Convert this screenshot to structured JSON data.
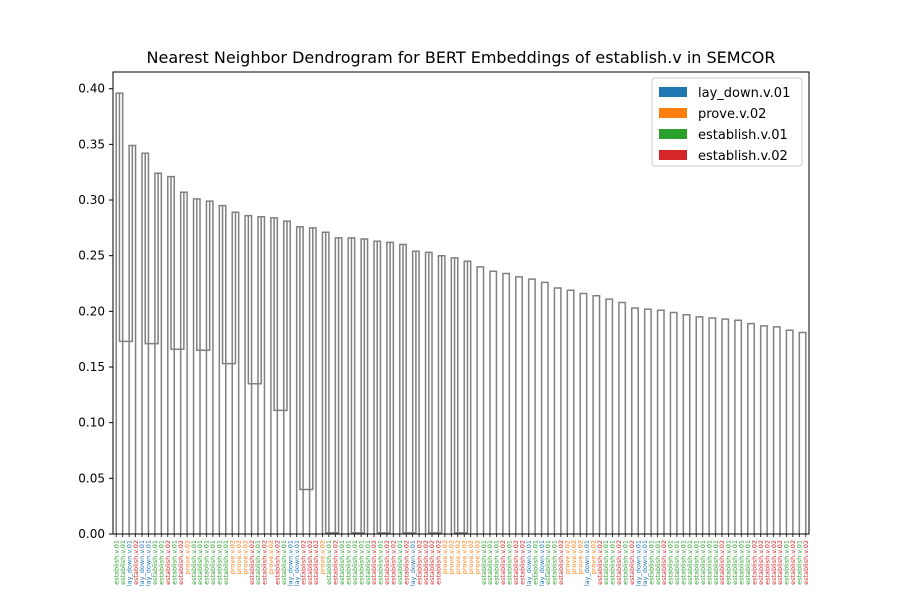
{
  "chart_data": {
    "type": "dendrogram",
    "title": "Nearest Neighbor Dendrogram for BERT Embeddings of establish.v in SEMCOR",
    "xlabel": "",
    "ylabel": "",
    "ylim": [
      0,
      0.415
    ],
    "yticks": [
      "0.00",
      "0.05",
      "0.10",
      "0.15",
      "0.20",
      "0.25",
      "0.30",
      "0.35",
      "0.40"
    ],
    "ytick_values": [
      0,
      0.05,
      0.1,
      0.15,
      0.2,
      0.25,
      0.3,
      0.35,
      0.4
    ],
    "grid": false,
    "legend_position": "top-right",
    "link_color": "#808080",
    "legend": [
      {
        "label": "lay_down.v.01",
        "color": "#1f77b4"
      },
      {
        "label": "prove.v.02",
        "color": "#ff7f0e"
      },
      {
        "label": "establish.v.01",
        "color": "#2ca02c"
      },
      {
        "label": "establish.v.02",
        "color": "#d62728"
      }
    ],
    "leaves": [
      "establish.v.01",
      "establish.v.01",
      "lay_down.v.01",
      "establish.v.02",
      "lay_down.v.01",
      "lay_down.v.01",
      "establish.v.01",
      "establish.v.01",
      "establish.v.02",
      "establish.v.01",
      "establish.v.02",
      "prove.v.02",
      "establish.v.01",
      "establish.v.01",
      "establish.v.01",
      "establish.v.01",
      "establish.v.01",
      "establish.v.01",
      "prove.v.02",
      "prove.v.02",
      "prove.v.02",
      "establish.v.02",
      "establish.v.01",
      "establish.v.02",
      "prove.v.02",
      "establish.v.02",
      "establish.v.01",
      "lay_down.v.01",
      "lay_down.v.01",
      "establish.v.02",
      "establish.v.02",
      "establish.v.02",
      "prove.v.02",
      "establish.v.01",
      "establish.v.02",
      "establish.v.01",
      "establish.v.01",
      "establish.v.01",
      "establish.v.01",
      "establish.v.01",
      "establish.v.02",
      "establish.v.01",
      "establish.v.02",
      "establish.v.02",
      "establish.v.01",
      "establish.v.02",
      "lay_down.v.01",
      "establish.v.02",
      "establish.v.02",
      "establish.v.02",
      "establish.v.02",
      "prove.v.02",
      "prove.v.02",
      "prove.v.02",
      "prove.v.02",
      "prove.v.02",
      "prove.v.02",
      "establish.v.01",
      "establish.v.01",
      "establish.v.01",
      "establish.v.02",
      "establish.v.01",
      "establish.v.02",
      "establish.v.02",
      "lay_down.v.01",
      "establish.v.01",
      "lay_down.v.01",
      "establish.v.01",
      "establish.v.01",
      "establish.v.02",
      "prove.v.02",
      "prove.v.02",
      "prove.v.02",
      "lay_down.v.01",
      "prove.v.02",
      "establish.v.02",
      "establish.v.01",
      "establish.v.01",
      "establish.v.02",
      "establish.v.01",
      "establish.v.02",
      "lay_down.v.01",
      "lay_down.v.01",
      "establish.v.01",
      "establish.v.01",
      "establish.v.02",
      "establish.v.01",
      "establish.v.01",
      "establish.v.01",
      "establish.v.01",
      "establish.v.01",
      "establish.v.01",
      "establish.v.01",
      "establish.v.01",
      "establish.v.02",
      "establish.v.01",
      "establish.v.01",
      "establish.v.01",
      "establish.v.01",
      "establish.v.02",
      "establish.v.02",
      "establish.v.02",
      "establish.v.02",
      "establish.v.02",
      "establish.v.01",
      "establish.v.02",
      "establish.v.01",
      "establish.v.02"
    ],
    "links": [
      [
        0,
        1,
        0.396
      ],
      [
        2,
        3,
        0.349
      ],
      [
        4,
        5,
        0.342
      ],
      [
        6,
        7,
        0.324
      ],
      [
        8,
        9,
        0.321
      ],
      [
        10,
        11,
        0.307
      ],
      [
        12,
        13,
        0.301
      ],
      [
        14,
        15,
        0.299
      ],
      [
        16,
        17,
        0.295
      ],
      [
        18,
        19,
        0.289
      ],
      [
        20,
        21,
        0.286
      ],
      [
        22,
        23,
        0.285
      ],
      [
        24,
        25,
        0.284
      ],
      [
        26,
        27,
        0.281
      ],
      [
        28,
        29,
        0.276
      ],
      [
        30,
        31,
        0.275
      ],
      [
        32,
        33,
        0.271
      ],
      [
        34,
        35,
        0.266
      ],
      [
        36,
        37,
        0.266
      ],
      [
        38,
        39,
        0.265
      ],
      [
        40,
        41,
        0.263
      ],
      [
        42,
        43,
        0.262
      ],
      [
        44,
        45,
        0.26
      ],
      [
        46,
        47,
        0.254
      ],
      [
        48,
        49,
        0.253
      ],
      [
        50,
        51,
        0.25
      ],
      [
        52,
        53,
        0.248
      ],
      [
        54,
        55,
        0.245
      ],
      [
        56,
        57,
        0.24
      ],
      [
        58,
        59,
        0.236
      ],
      [
        60,
        61,
        0.234
      ],
      [
        62,
        63,
        0.231
      ],
      [
        64,
        65,
        0.229
      ],
      [
        66,
        67,
        0.226
      ],
      [
        68,
        69,
        0.221
      ],
      [
        70,
        71,
        0.219
      ],
      [
        72,
        73,
        0.216
      ],
      [
        74,
        75,
        0.214
      ],
      [
        76,
        77,
        0.211
      ],
      [
        78,
        79,
        0.208
      ],
      [
        80,
        81,
        0.203
      ],
      [
        82,
        83,
        0.202
      ],
      [
        84,
        85,
        0.201
      ],
      [
        86,
        87,
        0.199
      ],
      [
        88,
        89,
        0.197
      ],
      [
        90,
        91,
        0.195
      ],
      [
        92,
        93,
        0.194
      ],
      [
        94,
        95,
        0.193
      ],
      [
        96,
        97,
        0.192
      ],
      [
        98,
        99,
        0.189
      ],
      [
        100,
        101,
        0.187
      ],
      [
        102,
        103,
        0.186
      ],
      [
        104,
        105,
        0.183
      ],
      [
        106,
        107,
        0.181
      ],
      [
        108,
        109,
        0.173
      ],
      [
        110,
        111,
        0.171
      ],
      [
        112,
        113,
        0.166
      ],
      [
        114,
        115,
        0.165
      ],
      [
        116,
        117,
        0.153
      ],
      [
        118,
        119,
        0.135
      ],
      [
        120,
        121,
        0.111
      ],
      [
        122,
        123,
        0.04
      ],
      [
        124,
        125,
        0.001
      ],
      [
        126,
        127,
        0.001
      ],
      [
        128,
        129,
        0.001
      ],
      [
        130,
        131,
        0.001
      ],
      [
        132,
        133,
        0.001
      ],
      [
        134,
        135,
        0.001
      ]
    ]
  }
}
